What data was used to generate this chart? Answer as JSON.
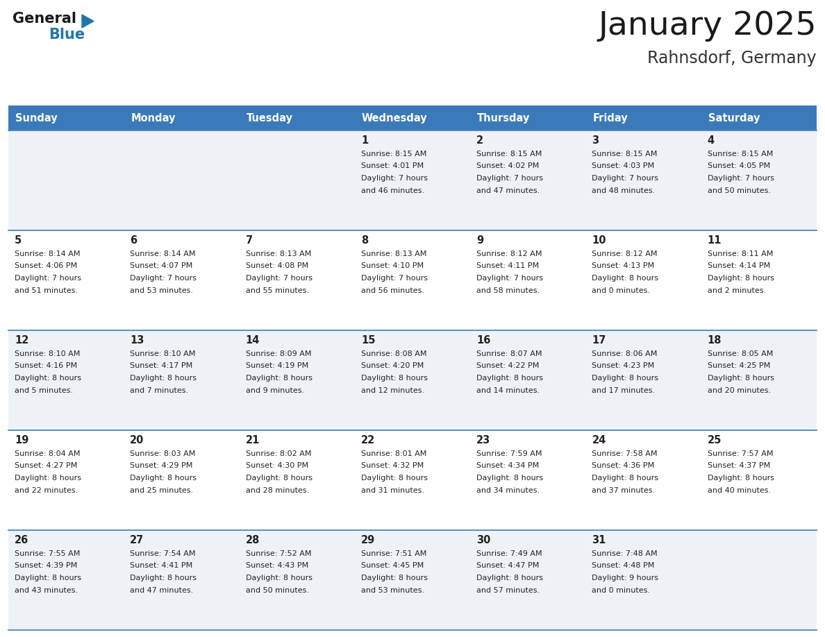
{
  "title": "January 2025",
  "subtitle": "Rahnsdorf, Germany",
  "header_bg": "#3a7aba",
  "header_text_color": "#ffffff",
  "day_names": [
    "Sunday",
    "Monday",
    "Tuesday",
    "Wednesday",
    "Thursday",
    "Friday",
    "Saturday"
  ],
  "row_bg_even": "#eef2f7",
  "row_bg_odd": "#ffffff",
  "cell_border_color": "#4a86c0",
  "date_color": "#222222",
  "info_color": "#222222",
  "logo_general_color": "#1a1a1a",
  "logo_blue_color": "#2176ae",
  "title_color": "#1a1a1a",
  "subtitle_color": "#333333",
  "calendar": [
    [
      null,
      null,
      null,
      {
        "day": 1,
        "sunrise": "8:15 AM",
        "sunset": "4:01 PM",
        "daylight": "7 hours and 46 minutes."
      },
      {
        "day": 2,
        "sunrise": "8:15 AM",
        "sunset": "4:02 PM",
        "daylight": "7 hours and 47 minutes."
      },
      {
        "day": 3,
        "sunrise": "8:15 AM",
        "sunset": "4:03 PM",
        "daylight": "7 hours and 48 minutes."
      },
      {
        "day": 4,
        "sunrise": "8:15 AM",
        "sunset": "4:05 PM",
        "daylight": "7 hours and 50 minutes."
      }
    ],
    [
      {
        "day": 5,
        "sunrise": "8:14 AM",
        "sunset": "4:06 PM",
        "daylight": "7 hours and 51 minutes."
      },
      {
        "day": 6,
        "sunrise": "8:14 AM",
        "sunset": "4:07 PM",
        "daylight": "7 hours and 53 minutes."
      },
      {
        "day": 7,
        "sunrise": "8:13 AM",
        "sunset": "4:08 PM",
        "daylight": "7 hours and 55 minutes."
      },
      {
        "day": 8,
        "sunrise": "8:13 AM",
        "sunset": "4:10 PM",
        "daylight": "7 hours and 56 minutes."
      },
      {
        "day": 9,
        "sunrise": "8:12 AM",
        "sunset": "4:11 PM",
        "daylight": "7 hours and 58 minutes."
      },
      {
        "day": 10,
        "sunrise": "8:12 AM",
        "sunset": "4:13 PM",
        "daylight": "8 hours and 0 minutes."
      },
      {
        "day": 11,
        "sunrise": "8:11 AM",
        "sunset": "4:14 PM",
        "daylight": "8 hours and 2 minutes."
      }
    ],
    [
      {
        "day": 12,
        "sunrise": "8:10 AM",
        "sunset": "4:16 PM",
        "daylight": "8 hours and 5 minutes."
      },
      {
        "day": 13,
        "sunrise": "8:10 AM",
        "sunset": "4:17 PM",
        "daylight": "8 hours and 7 minutes."
      },
      {
        "day": 14,
        "sunrise": "8:09 AM",
        "sunset": "4:19 PM",
        "daylight": "8 hours and 9 minutes."
      },
      {
        "day": 15,
        "sunrise": "8:08 AM",
        "sunset": "4:20 PM",
        "daylight": "8 hours and 12 minutes."
      },
      {
        "day": 16,
        "sunrise": "8:07 AM",
        "sunset": "4:22 PM",
        "daylight": "8 hours and 14 minutes."
      },
      {
        "day": 17,
        "sunrise": "8:06 AM",
        "sunset": "4:23 PM",
        "daylight": "8 hours and 17 minutes."
      },
      {
        "day": 18,
        "sunrise": "8:05 AM",
        "sunset": "4:25 PM",
        "daylight": "8 hours and 20 minutes."
      }
    ],
    [
      {
        "day": 19,
        "sunrise": "8:04 AM",
        "sunset": "4:27 PM",
        "daylight": "8 hours and 22 minutes."
      },
      {
        "day": 20,
        "sunrise": "8:03 AM",
        "sunset": "4:29 PM",
        "daylight": "8 hours and 25 minutes."
      },
      {
        "day": 21,
        "sunrise": "8:02 AM",
        "sunset": "4:30 PM",
        "daylight": "8 hours and 28 minutes."
      },
      {
        "day": 22,
        "sunrise": "8:01 AM",
        "sunset": "4:32 PM",
        "daylight": "8 hours and 31 minutes."
      },
      {
        "day": 23,
        "sunrise": "7:59 AM",
        "sunset": "4:34 PM",
        "daylight": "8 hours and 34 minutes."
      },
      {
        "day": 24,
        "sunrise": "7:58 AM",
        "sunset": "4:36 PM",
        "daylight": "8 hours and 37 minutes."
      },
      {
        "day": 25,
        "sunrise": "7:57 AM",
        "sunset": "4:37 PM",
        "daylight": "8 hours and 40 minutes."
      }
    ],
    [
      {
        "day": 26,
        "sunrise": "7:55 AM",
        "sunset": "4:39 PM",
        "daylight": "8 hours and 43 minutes."
      },
      {
        "day": 27,
        "sunrise": "7:54 AM",
        "sunset": "4:41 PM",
        "daylight": "8 hours and 47 minutes."
      },
      {
        "day": 28,
        "sunrise": "7:52 AM",
        "sunset": "4:43 PM",
        "daylight": "8 hours and 50 minutes."
      },
      {
        "day": 29,
        "sunrise": "7:51 AM",
        "sunset": "4:45 PM",
        "daylight": "8 hours and 53 minutes."
      },
      {
        "day": 30,
        "sunrise": "7:49 AM",
        "sunset": "4:47 PM",
        "daylight": "8 hours and 57 minutes."
      },
      {
        "day": 31,
        "sunrise": "7:48 AM",
        "sunset": "4:48 PM",
        "daylight": "9 hours and 0 minutes."
      },
      null
    ]
  ]
}
